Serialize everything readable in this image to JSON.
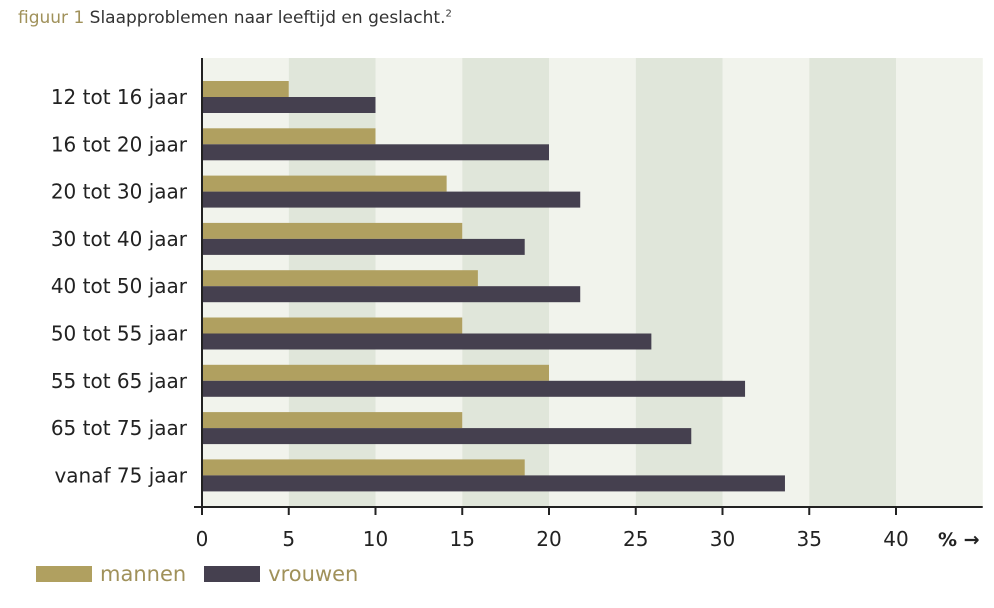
{
  "caption": {
    "figure_label": "figuur 1",
    "text": "Slaapproblemen naar leeftijd en geslacht.",
    "footnote": "2"
  },
  "colors": {
    "mannen": "#b0a060",
    "vrouwen": "#45404f",
    "band_light": "#f1f3ec",
    "band_dark": "#e0e6da",
    "axis": "#222222"
  },
  "chart_data": {
    "type": "bar",
    "orientation": "horizontal",
    "categories": [
      "12 tot 16 jaar",
      "16 tot 20 jaar",
      "20 tot 30 jaar",
      "30 tot 40 jaar",
      "40 tot 50 jaar",
      "50 tot 55 jaar",
      "55 tot 65 jaar",
      "65 tot 75 jaar",
      "vanaf 75 jaar"
    ],
    "series": [
      {
        "name": "mannen",
        "values": [
          5,
          10,
          14.1,
          15,
          15.9,
          15,
          20,
          15,
          18.6
        ]
      },
      {
        "name": "vrouwen",
        "values": [
          10,
          20,
          21.8,
          18.6,
          21.8,
          25.9,
          31.3,
          28.2,
          33.6
        ]
      }
    ],
    "xticks": [
      0,
      5,
      10,
      15,
      20,
      25,
      30,
      35,
      40
    ],
    "xlim": [
      0,
      45
    ],
    "unit_label": "% →",
    "title": "",
    "xlabel": "",
    "ylabel": "",
    "grid": "alternating vertical bands",
    "legend": "bottom-left"
  }
}
